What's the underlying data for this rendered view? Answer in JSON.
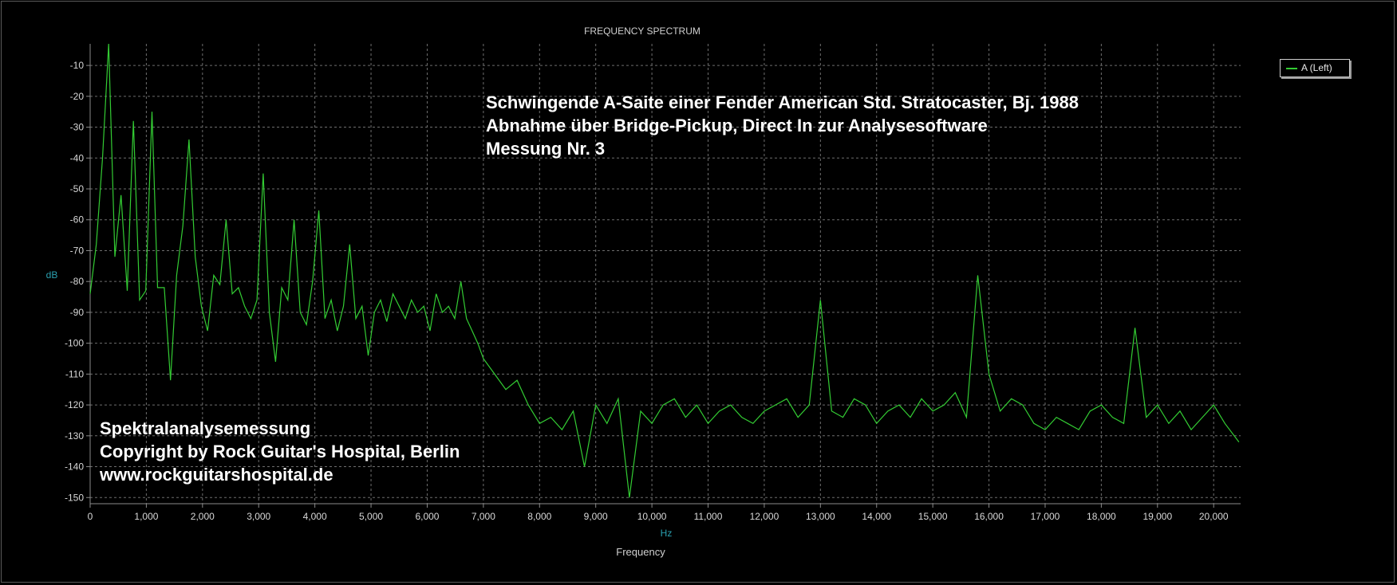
{
  "chart_data": {
    "type": "line",
    "title": "FREQUENCY SPECTRUM",
    "xlabel": "Frequency",
    "xunit": "Hz",
    "ylabel": "dB",
    "xlim": [
      0,
      20480
    ],
    "ylim": [
      -152,
      -3
    ],
    "grid": true,
    "legend_position": "top-right",
    "line_color": "#33cc33",
    "x_ticks": [
      0,
      1000,
      2000,
      3000,
      4000,
      5000,
      6000,
      7000,
      8000,
      9000,
      10000,
      11000,
      12000,
      13000,
      14000,
      15000,
      16000,
      17000,
      18000,
      19000,
      20000
    ],
    "x_tick_labels": [
      "0",
      "1,000",
      "2,000",
      "3,000",
      "4,000",
      "5,000",
      "6,000",
      "7,000",
      "8,000",
      "9,000",
      "10,000",
      "11,000",
      "12,000",
      "13,000",
      "14,000",
      "15,000",
      "16,000",
      "17,000",
      "18,000",
      "19,000",
      "20,000"
    ],
    "y_ticks": [
      -10,
      -20,
      -30,
      -40,
      -50,
      -60,
      -70,
      -80,
      -90,
      -100,
      -110,
      -120,
      -130,
      -140,
      -150
    ],
    "y_tick_labels": [
      "-10",
      "-20",
      "-30",
      "-40",
      "-50",
      "-60",
      "-70",
      "-80",
      "-90",
      "-100",
      "-110",
      "-120",
      "-130",
      "-140",
      "-150"
    ],
    "series": [
      {
        "name": "A (Left)",
        "x": [
          0,
          110,
          220,
          330,
          440,
          550,
          660,
          770,
          880,
          990,
          1100,
          1200,
          1320,
          1430,
          1540,
          1650,
          1760,
          1870,
          1980,
          2090,
          2200,
          2310,
          2420,
          2530,
          2640,
          2750,
          2860,
          2970,
          3080,
          3190,
          3300,
          3410,
          3520,
          3630,
          3740,
          3850,
          3960,
          4070,
          4180,
          4290,
          4400,
          4510,
          4620,
          4730,
          4840,
          4950,
          5060,
          5170,
          5280,
          5390,
          5500,
          5610,
          5720,
          5830,
          5940,
          6050,
          6160,
          6270,
          6380,
          6490,
          6600,
          6700,
          6800,
          6900,
          7000,
          7200,
          7400,
          7600,
          7800,
          8000,
          8200,
          8400,
          8600,
          8800,
          9000,
          9200,
          9400,
          9600,
          9800,
          10000,
          10200,
          10400,
          10600,
          10800,
          11000,
          11200,
          11400,
          11600,
          11800,
          12000,
          12200,
          12400,
          12600,
          12800,
          13000,
          13200,
          13400,
          13600,
          13800,
          14000,
          14200,
          14400,
          14600,
          14800,
          15000,
          15200,
          15400,
          15600,
          15800,
          16000,
          16200,
          16400,
          16600,
          16800,
          17000,
          17200,
          17400,
          17600,
          17800,
          18000,
          18200,
          18400,
          18600,
          18800,
          19000,
          19200,
          19400,
          19600,
          19800,
          20000,
          20200,
          20450
        ],
        "values": [
          -84,
          -68,
          -40,
          -3,
          -72,
          -52,
          -83,
          -28,
          -86,
          -83,
          -25,
          -82,
          -82,
          -112,
          -78,
          -62,
          -34,
          -72,
          -88,
          -96,
          -78,
          -81,
          -60,
          -84,
          -82,
          -88,
          -92,
          -86,
          -45,
          -90,
          -106,
          -82,
          -86,
          -60,
          -90,
          -94,
          -80,
          -57,
          -92,
          -86,
          -96,
          -88,
          -68,
          -92,
          -88,
          -104,
          -90,
          -86,
          -93,
          -84,
          -88,
          -92,
          -86,
          -90,
          -88,
          -96,
          -84,
          -90,
          -88,
          -92,
          -80,
          -92,
          -96,
          -100,
          -105,
          -110,
          -115,
          -112,
          -120,
          -126,
          -124,
          -128,
          -122,
          -140,
          -120,
          -126,
          -118,
          -150,
          -122,
          -126,
          -120,
          -118,
          -124,
          -120,
          -126,
          -122,
          -120,
          -124,
          -126,
          -122,
          -120,
          -118,
          -124,
          -120,
          -86,
          -122,
          -124,
          -118,
          -120,
          -126,
          -122,
          -120,
          -124,
          -118,
          -122,
          -120,
          -116,
          -124,
          -78,
          -110,
          -122,
          -118,
          -120,
          -126,
          -128,
          -124,
          -126,
          -128,
          -122,
          -120,
          -124,
          -126,
          -95,
          -124,
          -120,
          -126,
          -122,
          -128,
          -124,
          -120,
          -126,
          -132
        ]
      }
    ]
  },
  "annotations": {
    "info_lines": [
      "Schwingende A-Saite einer Fender American Std. Stratocaster, Bj. 1988",
      "Abnahme über Bridge-Pickup, Direct In zur Analysesoftware",
      "Messung Nr. 3"
    ],
    "copyright_lines": [
      "Spektralanalysemessung",
      "Copyright by Rock Guitar's Hospital, Berlin",
      "www.rockguitarshospital.de"
    ]
  },
  "colors": {
    "background": "#000000",
    "grid": "#6e6e6e",
    "axis_label": "#2aa0b0",
    "tick_text": "#d8d8d8",
    "series": "#33cc33"
  }
}
